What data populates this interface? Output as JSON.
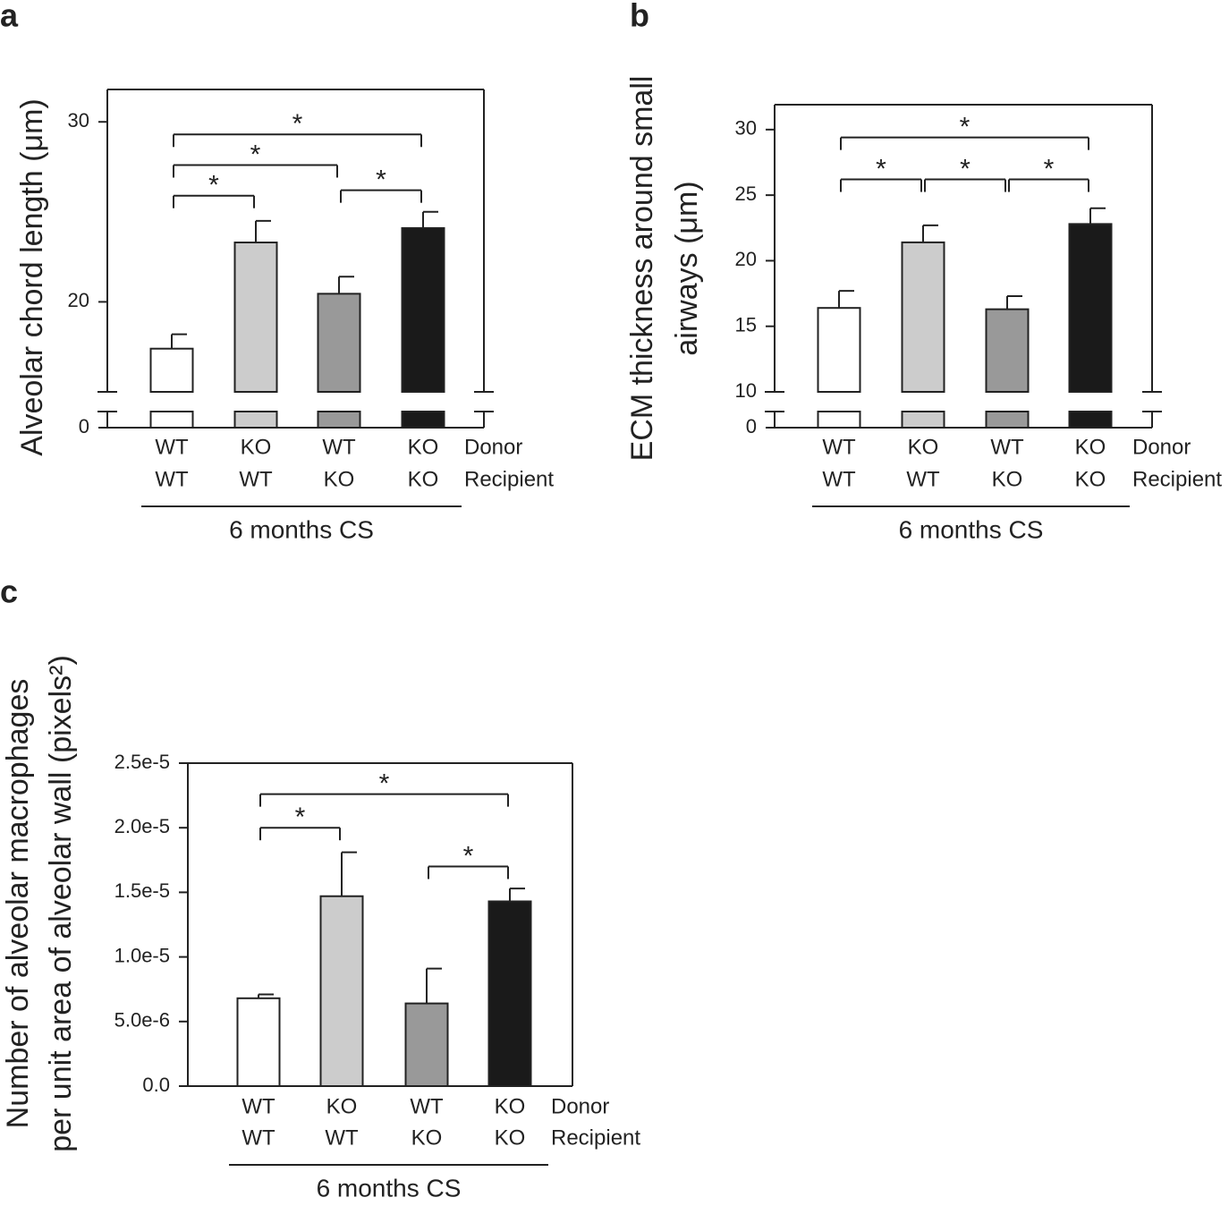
{
  "chart_data": [
    {
      "type": "bar",
      "panel_label": "a",
      "y_label": [
        "Alveolar chord length (μm)"
      ],
      "donor": [
        "WT",
        "KO",
        "WT",
        "KO"
      ],
      "recipient": [
        "WT",
        "WT",
        "KO",
        "KO"
      ],
      "row_labels": [
        "Donor",
        "Recipient"
      ],
      "group_label": "6 months CS",
      "values": [
        17.4,
        23.3,
        20.45,
        24.1
      ],
      "errors": [
        0.8,
        1.2,
        0.95,
        0.9
      ],
      "colors": [
        "#ffffff",
        "#cccccc",
        "#999999",
        "#1a1a1a"
      ],
      "ylim": [
        0,
        31.8
      ],
      "axis_break": [
        1,
        15
      ],
      "yticks": [
        0,
        20,
        30
      ],
      "significance": [
        {
          "from": 0,
          "to": 3,
          "level": 29.3,
          "label": "*"
        },
        {
          "from": 0,
          "to": 2,
          "level": 27.6,
          "label": "*"
        },
        {
          "from": 0,
          "to": 1,
          "level": 25.9,
          "label": "*"
        },
        {
          "from": 2,
          "to": 3,
          "level": 26.2,
          "label": "*"
        }
      ]
    },
    {
      "type": "bar",
      "panel_label": "b",
      "y_label": [
        "ECM thickness around small",
        "airways (μm)"
      ],
      "donor": [
        "WT",
        "KO",
        "WT",
        "KO"
      ],
      "recipient": [
        "WT",
        "WT",
        "KO",
        "KO"
      ],
      "row_labels": [
        "Donor",
        "Recipient"
      ],
      "group_label": "6 months CS",
      "values": [
        16.4,
        21.4,
        16.3,
        22.8
      ],
      "errors": [
        1.3,
        1.3,
        1.0,
        1.2
      ],
      "colors": [
        "#ffffff",
        "#cccccc",
        "#999999",
        "#1a1a1a"
      ],
      "ylim": [
        0,
        31.9
      ],
      "axis_break": [
        1,
        10
      ],
      "yticks": [
        0,
        10,
        15,
        20,
        25,
        30
      ],
      "significance": [
        {
          "from": 0,
          "to": 3,
          "level": 29.4,
          "label": "*"
        },
        {
          "from": 0,
          "to": 1,
          "level": 26.2,
          "label": "*"
        },
        {
          "from": 1,
          "to": 2,
          "level": 26.2,
          "label": "*"
        },
        {
          "from": 2,
          "to": 3,
          "level": 26.2,
          "label": "*"
        }
      ]
    },
    {
      "type": "bar",
      "panel_label": "c",
      "y_label": [
        "Number of alveolar macrophages",
        "per unit area of alveolar wall (pixels²)"
      ],
      "donor": [
        "WT",
        "KO",
        "WT",
        "KO"
      ],
      "recipient": [
        "WT",
        "WT",
        "KO",
        "KO"
      ],
      "row_labels": [
        "Donor",
        "Recipient"
      ],
      "group_label": "6 months CS",
      "values": [
        6.8e-06,
        1.47e-05,
        6.4e-06,
        1.43e-05
      ],
      "errors": [
        3e-07,
        3.4e-06,
        2.7e-06,
        1e-06
      ],
      "colors": [
        "#ffffff",
        "#cccccc",
        "#999999",
        "#1a1a1a"
      ],
      "ylim": [
        0,
        2.5e-05
      ],
      "yticks": [
        {
          "value": 0,
          "label": "0.0"
        },
        {
          "value": 5e-06,
          "label": "5.0e-6"
        },
        {
          "value": 1e-05,
          "label": "1.0e-5"
        },
        {
          "value": 1.5e-05,
          "label": "1.5e-5"
        },
        {
          "value": 2e-05,
          "label": "2.0e-5"
        },
        {
          "value": 2.5e-05,
          "label": "2.5e-5"
        }
      ],
      "significance": [
        {
          "from": 0,
          "to": 3,
          "level": 2.26e-05,
          "label": "*"
        },
        {
          "from": 0,
          "to": 1,
          "level": 2e-05,
          "label": "*"
        },
        {
          "from": 2,
          "to": 3,
          "level": 1.7e-05,
          "label": "*"
        }
      ]
    }
  ]
}
